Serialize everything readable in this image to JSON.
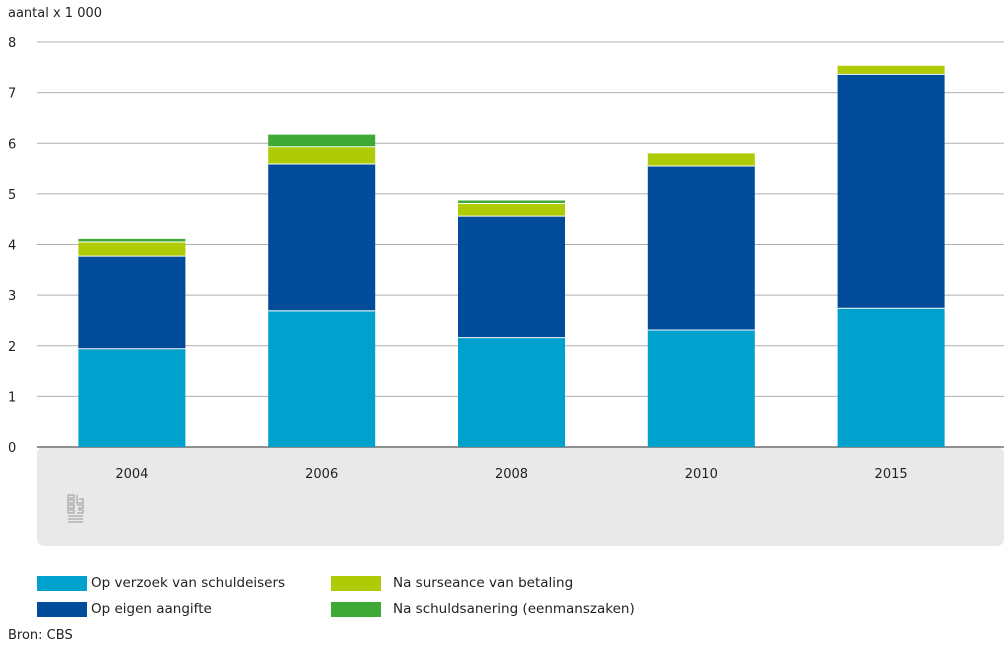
{
  "chart_data": {
    "type": "bar",
    "stacked": true,
    "ylabel": "aantal x 1 000",
    "ylim": [
      0,
      8
    ],
    "yticks": [
      "0",
      "1",
      "2",
      "3",
      "4",
      "5",
      "6",
      "7",
      "8"
    ],
    "categories": [
      "2004",
      "2006",
      "2008",
      "2010",
      "2015"
    ],
    "series": [
      {
        "name": "Op verzoek van schuldeisers",
        "color": "#00a1cd",
        "values": [
          1.95,
          2.7,
          2.17,
          2.32,
          2.75
        ]
      },
      {
        "name": "Op eigen aangifte",
        "color": "#004b9a",
        "values": [
          1.83,
          2.9,
          2.4,
          3.24,
          4.62
        ]
      },
      {
        "name": "Na surseance van betaling",
        "color": "#afcb05",
        "values": [
          0.28,
          0.34,
          0.25,
          0.26,
          0.18
        ]
      },
      {
        "name": "Na schuldsanering (eenmanszaken)",
        "color": "#3ea935",
        "values": [
          0.07,
          0.25,
          0.07,
          0.0,
          0.0
        ]
      }
    ],
    "grid": true,
    "legend_position": "bottom"
  },
  "source": "Bron: CBS",
  "logo": "cbs-logo-icon"
}
